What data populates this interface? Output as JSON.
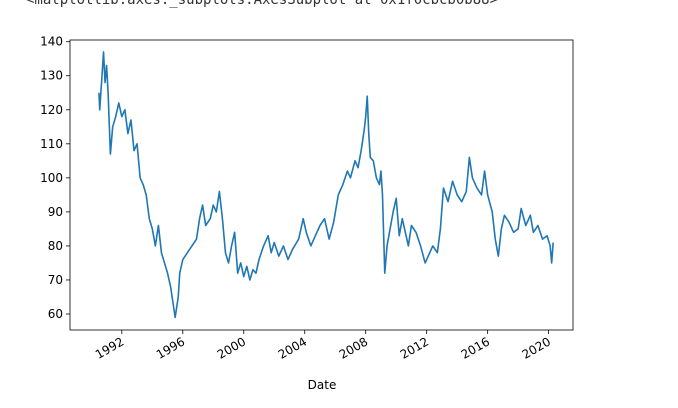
{
  "output_text": "<matplotlib.axes._subplots.AxesSubplot at 0x1f0cbcb0b88>",
  "chart_data": {
    "type": "line",
    "xlabel": "Date",
    "color": "#1f77b4",
    "xlim": [
      1988.6,
      2021.6
    ],
    "xticks": [
      1992,
      1996,
      2000,
      2004,
      2008,
      2012,
      2016,
      2020
    ],
    "ylim": [
      55.3,
      140.5
    ],
    "yticks": [
      60,
      70,
      80,
      90,
      100,
      110,
      120,
      130,
      140
    ],
    "x": [
      1990.5,
      1990.55,
      1990.7,
      1990.8,
      1990.9,
      1991.0,
      1991.1,
      1991.25,
      1991.4,
      1991.6,
      1991.8,
      1992.0,
      1992.2,
      1992.4,
      1992.6,
      1992.8,
      1993.0,
      1993.2,
      1993.4,
      1993.6,
      1993.8,
      1994.0,
      1994.2,
      1994.4,
      1994.6,
      1994.8,
      1995.0,
      1995.2,
      1995.4,
      1995.5,
      1995.7,
      1995.8,
      1996.0,
      1996.3,
      1996.6,
      1996.9,
      1997.1,
      1997.3,
      1997.5,
      1997.8,
      1998.0,
      1998.2,
      1998.4,
      1998.6,
      1998.8,
      1999.0,
      1999.2,
      1999.4,
      1999.6,
      1999.8,
      2000.0,
      2000.2,
      2000.4,
      2000.6,
      2000.8,
      2001.0,
      2001.3,
      2001.6,
      2001.8,
      2002.0,
      2002.3,
      2002.6,
      2002.9,
      2003.2,
      2003.6,
      2003.9,
      2004.1,
      2004.4,
      2004.7,
      2005.0,
      2005.3,
      2005.6,
      2005.9,
      2006.2,
      2006.5,
      2006.8,
      2007.0,
      2007.3,
      2007.5,
      2007.7,
      2007.9,
      2008.0,
      2008.1,
      2008.2,
      2008.3,
      2008.5,
      2008.7,
      2008.9,
      2009.0,
      2009.1,
      2009.25,
      2009.4,
      2009.6,
      2009.8,
      2010.0,
      2010.2,
      2010.4,
      2010.6,
      2010.8,
      2011.0,
      2011.3,
      2011.6,
      2011.9,
      2012.1,
      2012.4,
      2012.7,
      2012.9,
      2013.1,
      2013.4,
      2013.7,
      2014.0,
      2014.3,
      2014.6,
      2014.8,
      2015.0,
      2015.3,
      2015.6,
      2015.8,
      2016.0,
      2016.3,
      2016.5,
      2016.7,
      2016.9,
      2017.1,
      2017.4,
      2017.7,
      2018.0,
      2018.2,
      2018.5,
      2018.8,
      2019.0,
      2019.3,
      2019.6,
      2019.9,
      2020.1,
      2020.2,
      2020.3
    ],
    "values": [
      125,
      120,
      130,
      137,
      128,
      133,
      125,
      107,
      115,
      118,
      122,
      118,
      120,
      113,
      117,
      108,
      110,
      100,
      98,
      95,
      88,
      85,
      80,
      86,
      78,
      75,
      72,
      68,
      62,
      59,
      65,
      72,
      76,
      78,
      80,
      82,
      88,
      92,
      86,
      88,
      92,
      90,
      96,
      88,
      78,
      75,
      80,
      84,
      72,
      75,
      71,
      74,
      70,
      73,
      72,
      76,
      80,
      83,
      78,
      81,
      77,
      80,
      76,
      79,
      82,
      88,
      84,
      80,
      83,
      86,
      88,
      82,
      87,
      95,
      98,
      102,
      100,
      105,
      103,
      108,
      114,
      118,
      124,
      113,
      106,
      105,
      100,
      98,
      102,
      95,
      72,
      80,
      85,
      90,
      94,
      83,
      88,
      84,
      80,
      86,
      84,
      80,
      75,
      77,
      80,
      78,
      85,
      97,
      93,
      99,
      95,
      93,
      96,
      106,
      100,
      97,
      95,
      102,
      95,
      90,
      82,
      77,
      85,
      89,
      87,
      84,
      85,
      91,
      86,
      89,
      84,
      86,
      82,
      83,
      80,
      75,
      81
    ]
  }
}
